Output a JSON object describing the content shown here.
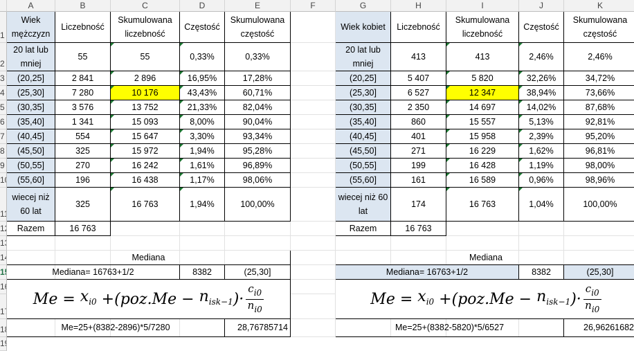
{
  "columns": [
    "A",
    "B",
    "C",
    "D",
    "E",
    "F",
    "G",
    "H",
    "I",
    "J",
    "K"
  ],
  "rows": [
    "1",
    "2",
    "3",
    "4",
    "5",
    "6",
    "7",
    "8",
    "9",
    "10",
    "11",
    "12",
    "13",
    "14",
    "15",
    "16",
    "17",
    "18",
    "19"
  ],
  "men": {
    "headers": [
      "Wiek mężczyzn",
      "Liczebność",
      "Skumulowana liczebność",
      "Częstość",
      "Skumulowana częstość"
    ],
    "data": [
      [
        "20 lat lub mniej",
        "55",
        "55",
        "0,33%",
        "0,33%"
      ],
      [
        "(20,25]",
        "2 841",
        "2 896",
        "16,95%",
        "17,28%"
      ],
      [
        "(25,30]",
        "7 280",
        "10 176",
        "43,43%",
        "60,71%"
      ],
      [
        "(30,35]",
        "3 576",
        "13 752",
        "21,33%",
        "82,04%"
      ],
      [
        "(35,40]",
        "1 341",
        "15 093",
        "8,00%",
        "90,04%"
      ],
      [
        "(40,45]",
        "554",
        "15 647",
        "3,30%",
        "93,34%"
      ],
      [
        "(45,50]",
        "325",
        "15 972",
        "1,94%",
        "95,28%"
      ],
      [
        "(50,55]",
        "270",
        "16 242",
        "1,61%",
        "96,89%"
      ],
      [
        "(55,60]",
        "196",
        "16 438",
        "1,17%",
        "98,06%"
      ],
      [
        "wiecej niż 60 lat",
        "325",
        "16 763",
        "1,94%",
        "100,00%"
      ]
    ],
    "total_label": "Razem",
    "total_value": "16 763",
    "median_title": "Mediana",
    "median_formula_text": "Mediana= 16763+1/2",
    "median_pos": "8382",
    "median_class": "(25,30]",
    "me_calc": "Me=25+(8382-2896)*5/7280",
    "me_value": "28,76785714"
  },
  "women": {
    "headers": [
      "Wiek kobiet",
      "Liczebność",
      "Skumulowana liczebność",
      "Częstość",
      "Skumulowana częstość"
    ],
    "data": [
      [
        "20 lat lub mniej",
        "413",
        "413",
        "2,46%",
        "2,46%"
      ],
      [
        "(20,25]",
        "5 407",
        "5 820",
        "32,26%",
        "34,72%"
      ],
      [
        "(25,30]",
        "6 527",
        "12 347",
        "38,94%",
        "73,66%"
      ],
      [
        "(30,35]",
        "2 350",
        "14 697",
        "14,02%",
        "87,68%"
      ],
      [
        "(35,40]",
        "860",
        "15 557",
        "5,13%",
        "92,81%"
      ],
      [
        "(40,45]",
        "401",
        "15 958",
        "2,39%",
        "95,20%"
      ],
      [
        "(45,50]",
        "271",
        "16 229",
        "1,62%",
        "96,81%"
      ],
      [
        "(50,55]",
        "199",
        "16 428",
        "1,19%",
        "98,00%"
      ],
      [
        "(55,60]",
        "161",
        "16 589",
        "0,96%",
        "98,96%"
      ],
      [
        "wiecej niż 60 lat",
        "174",
        "16 763",
        "1,04%",
        "100,00%"
      ]
    ],
    "total_label": "Razem",
    "total_value": "16 763",
    "median_title": "Mediana",
    "median_formula_text": "Mediana= 16763+1/2",
    "median_pos": "8382",
    "median_class": "(25,30]",
    "me_calc": "Me=25+(8382-5820)*5/6527",
    "me_value": "26,96261682"
  },
  "formula": {
    "lhs": "Me",
    "x": "x",
    "x_sub": "i0",
    "pos": "poz.Me",
    "n": "n",
    "n_sub": "isk−1",
    "c": "c",
    "c_sub": "i0",
    "n2": "n",
    "n2_sub": "i0"
  },
  "colors": {
    "header_bg": "#f2f2f2",
    "blue_fill": "#dce6f1",
    "yellow_fill": "#ffff00",
    "selected_row": "#217346"
  }
}
